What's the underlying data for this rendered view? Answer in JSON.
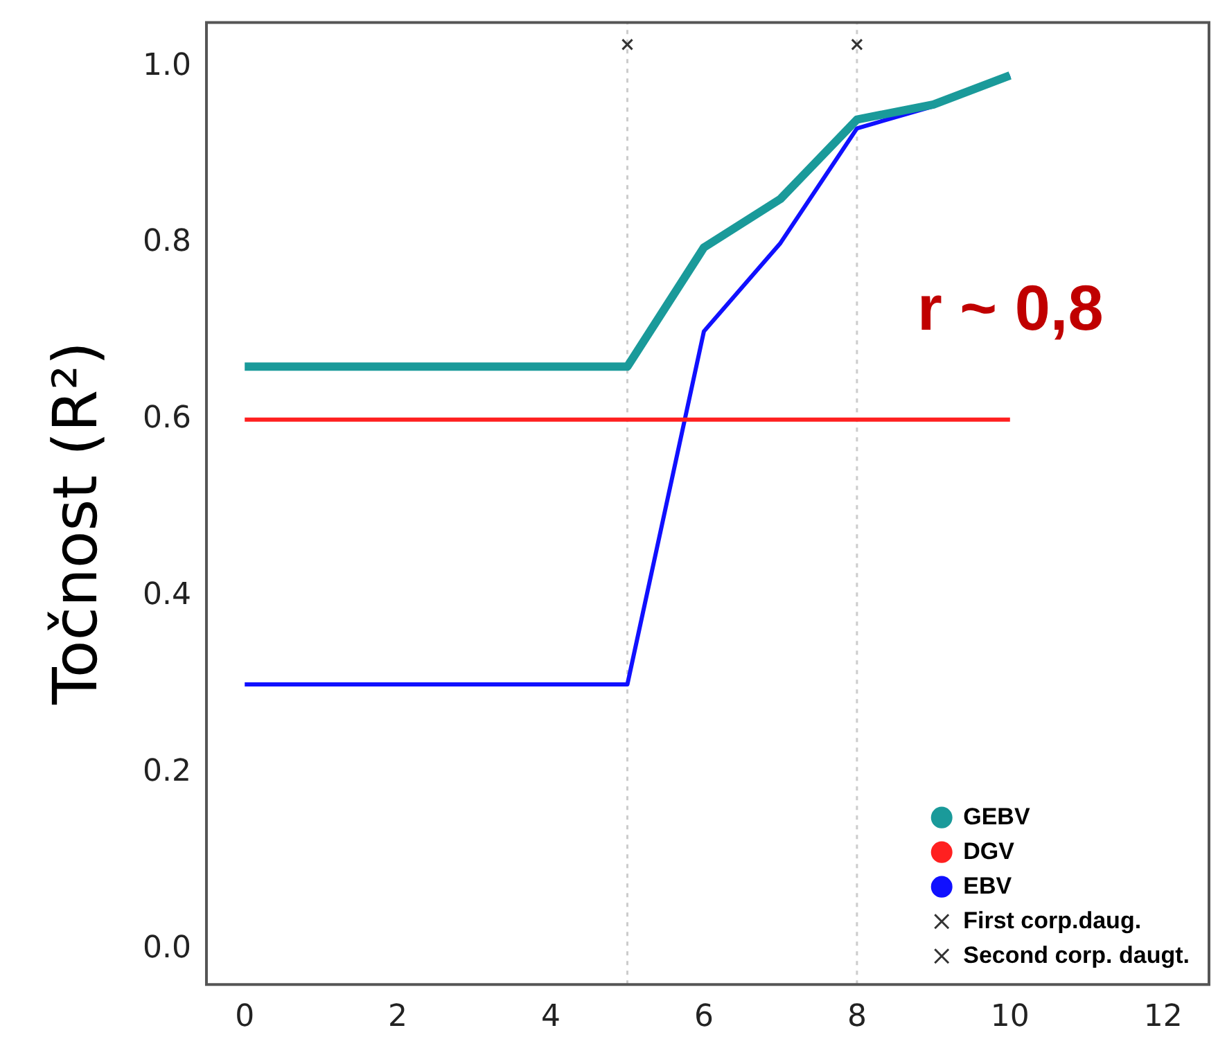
{
  "chart_data": {
    "type": "line",
    "ylabel": "Točnost (R²)",
    "x": [
      0,
      1,
      2,
      3,
      4,
      5,
      6,
      7,
      8,
      9,
      10
    ],
    "series": [
      {
        "name": "GEBV",
        "color": "#1a9a9a",
        "values": [
          0.66,
          0.66,
          0.66,
          0.66,
          0.66,
          0.66,
          0.795,
          0.85,
          0.94,
          0.957,
          0.99
        ]
      },
      {
        "name": "DGV",
        "color": "#ff2020",
        "values": [
          0.6,
          0.6,
          0.6,
          0.6,
          0.6,
          0.6,
          0.6,
          0.6,
          0.6,
          0.6,
          0.6
        ]
      },
      {
        "name": "EBV",
        "color": "#1010ff",
        "values": [
          0.3,
          0.3,
          0.3,
          0.3,
          0.3,
          0.3,
          0.7,
          0.8,
          0.93,
          0.955,
          0.99
        ]
      },
      {
        "name": "First corp.daug.",
        "type": "scatter",
        "marker": "cross",
        "color": "#333333",
        "x": [
          5
        ],
        "values": [
          1.025
        ]
      },
      {
        "name": "Second corp. daugt.",
        "type": "scatter",
        "marker": "cross",
        "color": "#333333",
        "x": [
          8
        ],
        "values": [
          1.025
        ]
      }
    ],
    "xlim": [
      -0.5,
      12.6
    ],
    "xticks": [
      0,
      2,
      4,
      6,
      8,
      10,
      12
    ],
    "ylim": [
      -0.04,
      1.05
    ],
    "yticks": [
      {
        "value": 0,
        "label": "0.0"
      },
      0.2,
      0.4,
      0.6,
      0.8,
      {
        "value": 1,
        "label": "1.0"
      }
    ],
    "ref_lines": [
      {
        "axis": "x",
        "value": 5,
        "color": "#cccccc",
        "line_style": "dotted"
      },
      {
        "axis": "x",
        "value": 8,
        "color": "#cccccc",
        "line_style": "dotted"
      }
    ],
    "annotations": [
      "r ~ 0,8"
    ],
    "legend": "bottom right",
    "grid": false,
    "marker": "none",
    "line_style": "solid"
  }
}
